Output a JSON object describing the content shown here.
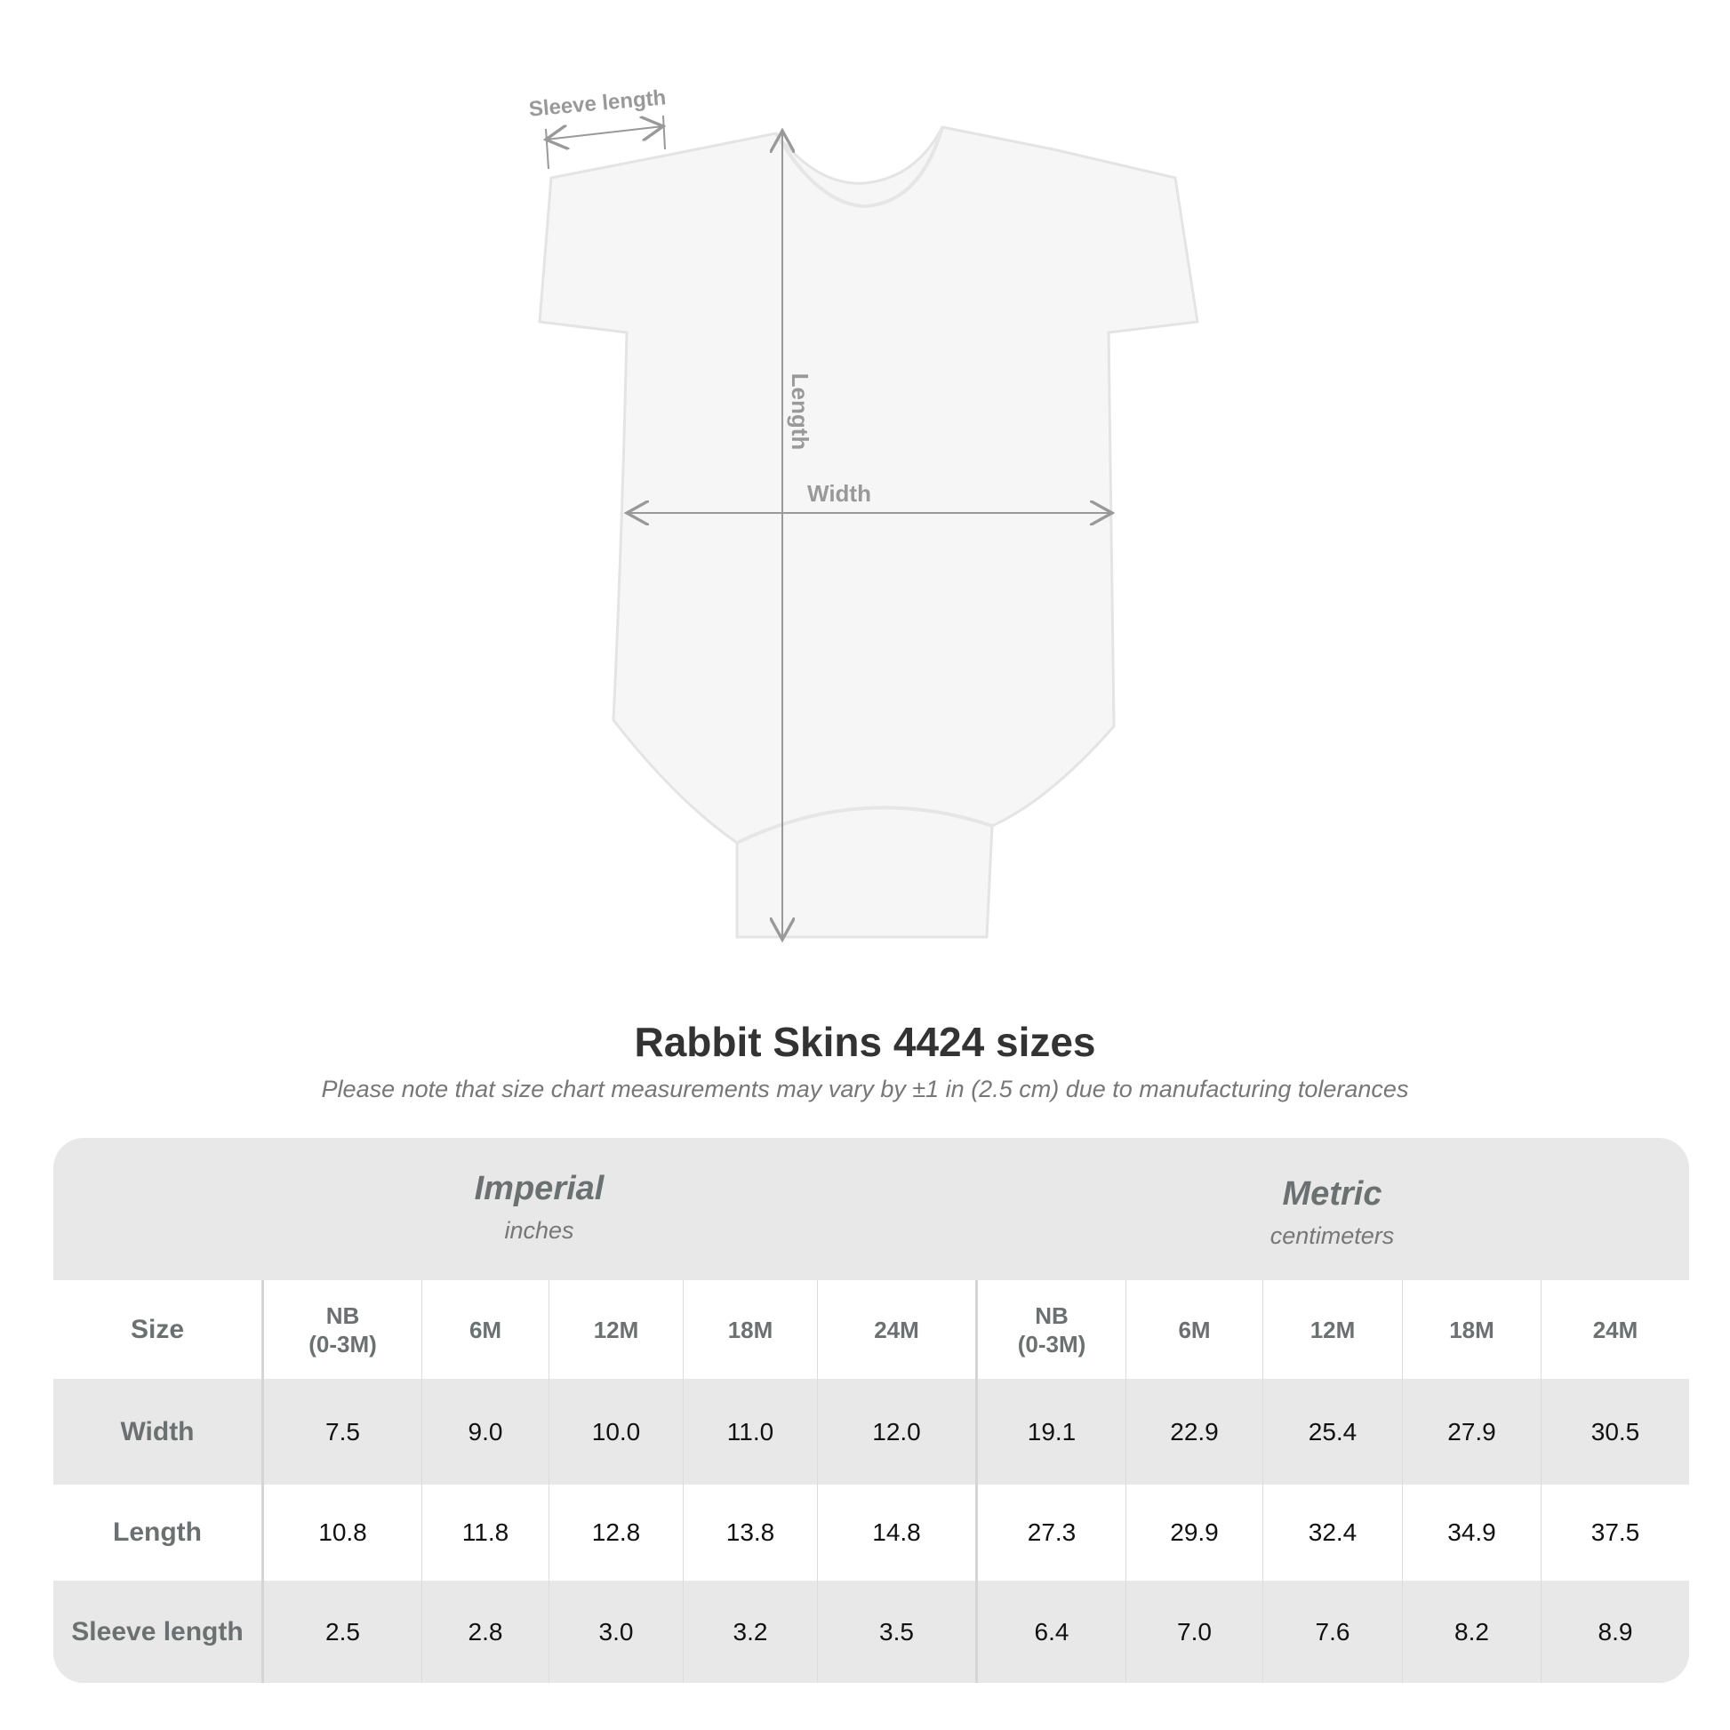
{
  "diagram": {
    "sleeve_label": "Sleeve length",
    "length_label": "Length",
    "width_label": "Width"
  },
  "title": "Rabbit Skins 4424 sizes",
  "subtitle": "Please note that size chart measurements may vary by ±1 in (2.5 cm) due to manufacturing tolerances",
  "table": {
    "imperial": {
      "name": "Imperial",
      "unit": "inches"
    },
    "metric": {
      "name": "Metric",
      "unit": "centimeters"
    },
    "size_label": "Size",
    "sizes": [
      "NB\n(0-3M)",
      "6M",
      "12M",
      "18M",
      "24M"
    ],
    "rows": [
      {
        "label": "Width",
        "imperial": [
          "7.5",
          "9.0",
          "10.0",
          "11.0",
          "12.0"
        ],
        "metric": [
          "19.1",
          "22.9",
          "25.4",
          "27.9",
          "30.5"
        ]
      },
      {
        "label": "Length",
        "imperial": [
          "10.8",
          "11.8",
          "12.8",
          "13.8",
          "14.8"
        ],
        "metric": [
          "27.3",
          "29.9",
          "32.4",
          "34.9",
          "37.5"
        ]
      },
      {
        "label": "Sleeve length",
        "imperial": [
          "2.5",
          "2.8",
          "3.0",
          "3.2",
          "3.5"
        ],
        "metric": [
          "6.4",
          "7.0",
          "7.6",
          "8.2",
          "8.9"
        ]
      }
    ]
  }
}
